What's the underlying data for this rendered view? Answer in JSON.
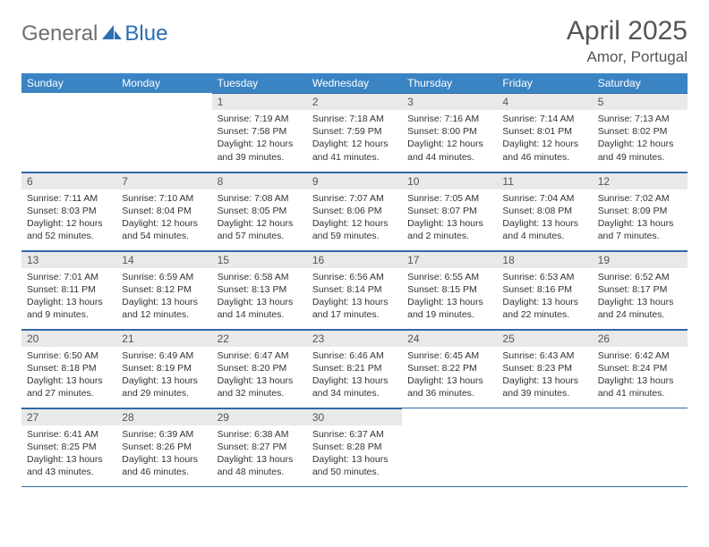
{
  "logo": {
    "general": "General",
    "blue": "Blue"
  },
  "title": "April 2025",
  "location": "Amor, Portugal",
  "colors": {
    "header_bg": "#3b84c4",
    "header_text": "#ffffff",
    "daynum_bg": "#e9e9e9",
    "border": "#2f6aa8",
    "logo_gray": "#6f6f6f",
    "logo_blue": "#2a6db2",
    "title_color": "#555555"
  },
  "day_headers": [
    "Sunday",
    "Monday",
    "Tuesday",
    "Wednesday",
    "Thursday",
    "Friday",
    "Saturday"
  ],
  "weeks": [
    [
      null,
      null,
      {
        "n": "1",
        "sr": "7:19 AM",
        "ss": "7:58 PM",
        "dl": "12 hours and 39 minutes."
      },
      {
        "n": "2",
        "sr": "7:18 AM",
        "ss": "7:59 PM",
        "dl": "12 hours and 41 minutes."
      },
      {
        "n": "3",
        "sr": "7:16 AM",
        "ss": "8:00 PM",
        "dl": "12 hours and 44 minutes."
      },
      {
        "n": "4",
        "sr": "7:14 AM",
        "ss": "8:01 PM",
        "dl": "12 hours and 46 minutes."
      },
      {
        "n": "5",
        "sr": "7:13 AM",
        "ss": "8:02 PM",
        "dl": "12 hours and 49 minutes."
      }
    ],
    [
      {
        "n": "6",
        "sr": "7:11 AM",
        "ss": "8:03 PM",
        "dl": "12 hours and 52 minutes."
      },
      {
        "n": "7",
        "sr": "7:10 AM",
        "ss": "8:04 PM",
        "dl": "12 hours and 54 minutes."
      },
      {
        "n": "8",
        "sr": "7:08 AM",
        "ss": "8:05 PM",
        "dl": "12 hours and 57 minutes."
      },
      {
        "n": "9",
        "sr": "7:07 AM",
        "ss": "8:06 PM",
        "dl": "12 hours and 59 minutes."
      },
      {
        "n": "10",
        "sr": "7:05 AM",
        "ss": "8:07 PM",
        "dl": "13 hours and 2 minutes."
      },
      {
        "n": "11",
        "sr": "7:04 AM",
        "ss": "8:08 PM",
        "dl": "13 hours and 4 minutes."
      },
      {
        "n": "12",
        "sr": "7:02 AM",
        "ss": "8:09 PM",
        "dl": "13 hours and 7 minutes."
      }
    ],
    [
      {
        "n": "13",
        "sr": "7:01 AM",
        "ss": "8:11 PM",
        "dl": "13 hours and 9 minutes."
      },
      {
        "n": "14",
        "sr": "6:59 AM",
        "ss": "8:12 PM",
        "dl": "13 hours and 12 minutes."
      },
      {
        "n": "15",
        "sr": "6:58 AM",
        "ss": "8:13 PM",
        "dl": "13 hours and 14 minutes."
      },
      {
        "n": "16",
        "sr": "6:56 AM",
        "ss": "8:14 PM",
        "dl": "13 hours and 17 minutes."
      },
      {
        "n": "17",
        "sr": "6:55 AM",
        "ss": "8:15 PM",
        "dl": "13 hours and 19 minutes."
      },
      {
        "n": "18",
        "sr": "6:53 AM",
        "ss": "8:16 PM",
        "dl": "13 hours and 22 minutes."
      },
      {
        "n": "19",
        "sr": "6:52 AM",
        "ss": "8:17 PM",
        "dl": "13 hours and 24 minutes."
      }
    ],
    [
      {
        "n": "20",
        "sr": "6:50 AM",
        "ss": "8:18 PM",
        "dl": "13 hours and 27 minutes."
      },
      {
        "n": "21",
        "sr": "6:49 AM",
        "ss": "8:19 PM",
        "dl": "13 hours and 29 minutes."
      },
      {
        "n": "22",
        "sr": "6:47 AM",
        "ss": "8:20 PM",
        "dl": "13 hours and 32 minutes."
      },
      {
        "n": "23",
        "sr": "6:46 AM",
        "ss": "8:21 PM",
        "dl": "13 hours and 34 minutes."
      },
      {
        "n": "24",
        "sr": "6:45 AM",
        "ss": "8:22 PM",
        "dl": "13 hours and 36 minutes."
      },
      {
        "n": "25",
        "sr": "6:43 AM",
        "ss": "8:23 PM",
        "dl": "13 hours and 39 minutes."
      },
      {
        "n": "26",
        "sr": "6:42 AM",
        "ss": "8:24 PM",
        "dl": "13 hours and 41 minutes."
      }
    ],
    [
      {
        "n": "27",
        "sr": "6:41 AM",
        "ss": "8:25 PM",
        "dl": "13 hours and 43 minutes."
      },
      {
        "n": "28",
        "sr": "6:39 AM",
        "ss": "8:26 PM",
        "dl": "13 hours and 46 minutes."
      },
      {
        "n": "29",
        "sr": "6:38 AM",
        "ss": "8:27 PM",
        "dl": "13 hours and 48 minutes."
      },
      {
        "n": "30",
        "sr": "6:37 AM",
        "ss": "8:28 PM",
        "dl": "13 hours and 50 minutes."
      },
      null,
      null,
      null
    ]
  ],
  "labels": {
    "sunrise": "Sunrise: ",
    "sunset": "Sunset: ",
    "daylight": "Daylight: "
  }
}
